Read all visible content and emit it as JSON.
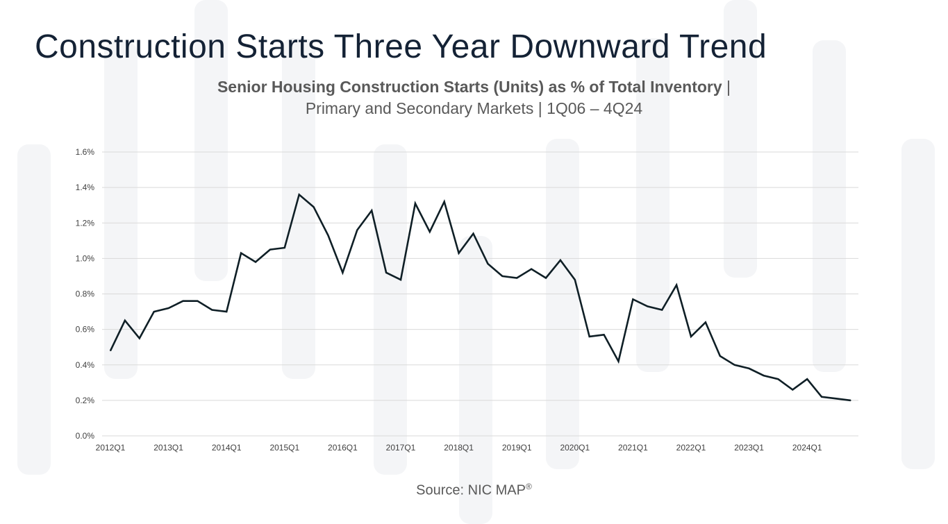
{
  "title": "Construction Starts Three Year Downward Trend",
  "subtitle": {
    "bold_part": "Senior Housing Construction Starts (Units) as % of Total Inventory",
    "bold_separator": " |",
    "line2": "Primary and Secondary Markets | 1Q06 – 4Q24"
  },
  "source": {
    "text": "Source: NIC MAP",
    "mark": "®"
  },
  "colors": {
    "line": "#0f1f26",
    "grid": "#d9d9d9",
    "tick_text": "#404040",
    "decor": "#f4f5f7"
  },
  "chart_data": {
    "type": "line",
    "title": "Senior Housing Construction Starts (Units) as % of Total Inventory | Primary and Secondary Markets | 1Q06 – 4Q24",
    "xlabel": "",
    "ylabel": "",
    "ylim": [
      0,
      1.6
    ],
    "yticks": [
      0,
      0.2,
      0.4,
      0.6,
      0.8,
      1.0,
      1.2,
      1.4,
      1.6
    ],
    "ytick_labels": [
      "0.0%",
      "0.2%",
      "0.4%",
      "0.6%",
      "0.8%",
      "1.0%",
      "1.2%",
      "1.4%",
      "1.6%"
    ],
    "xtick_labels": [
      "2012Q1",
      "2013Q1",
      "2014Q1",
      "2015Q1",
      "2016Q1",
      "2017Q1",
      "2018Q1",
      "2019Q1",
      "2020Q1",
      "2021Q1",
      "2022Q1",
      "2023Q1",
      "2024Q1"
    ],
    "grid": true,
    "legend": "none",
    "x": [
      "2012Q1",
      "2012Q2",
      "2012Q3",
      "2012Q4",
      "2013Q1",
      "2013Q2",
      "2013Q3",
      "2013Q4",
      "2014Q1",
      "2014Q2",
      "2014Q3",
      "2014Q4",
      "2015Q1",
      "2015Q2",
      "2015Q3",
      "2015Q4",
      "2016Q1",
      "2016Q2",
      "2016Q3",
      "2016Q4",
      "2017Q1",
      "2017Q2",
      "2017Q3",
      "2017Q4",
      "2018Q1",
      "2018Q2",
      "2018Q3",
      "2018Q4",
      "2019Q1",
      "2019Q2",
      "2019Q3",
      "2019Q4",
      "2020Q1",
      "2020Q2",
      "2020Q3",
      "2020Q4",
      "2021Q1",
      "2021Q2",
      "2021Q3",
      "2021Q4",
      "2022Q1",
      "2022Q2",
      "2022Q3",
      "2022Q4",
      "2023Q1",
      "2023Q2",
      "2023Q3",
      "2023Q4",
      "2024Q1",
      "2024Q2",
      "2024Q3",
      "2024Q4"
    ],
    "series": [
      {
        "values": [
          0.48,
          0.65,
          0.55,
          0.7,
          0.72,
          0.76,
          0.76,
          0.71,
          0.7,
          1.03,
          0.98,
          1.05,
          1.06,
          1.36,
          1.29,
          1.13,
          0.92,
          1.16,
          1.27,
          0.92,
          0.88,
          1.31,
          1.15,
          1.32,
          1.03,
          1.14,
          0.97,
          0.9,
          0.89,
          0.94,
          0.89,
          0.99,
          0.88,
          0.56,
          0.57,
          0.42,
          0.77,
          0.73,
          0.71,
          0.85,
          0.56,
          0.64,
          0.45,
          0.4,
          0.38,
          0.34,
          0.32,
          0.26,
          0.32,
          0.22,
          0.21,
          0.2
        ]
      }
    ]
  }
}
